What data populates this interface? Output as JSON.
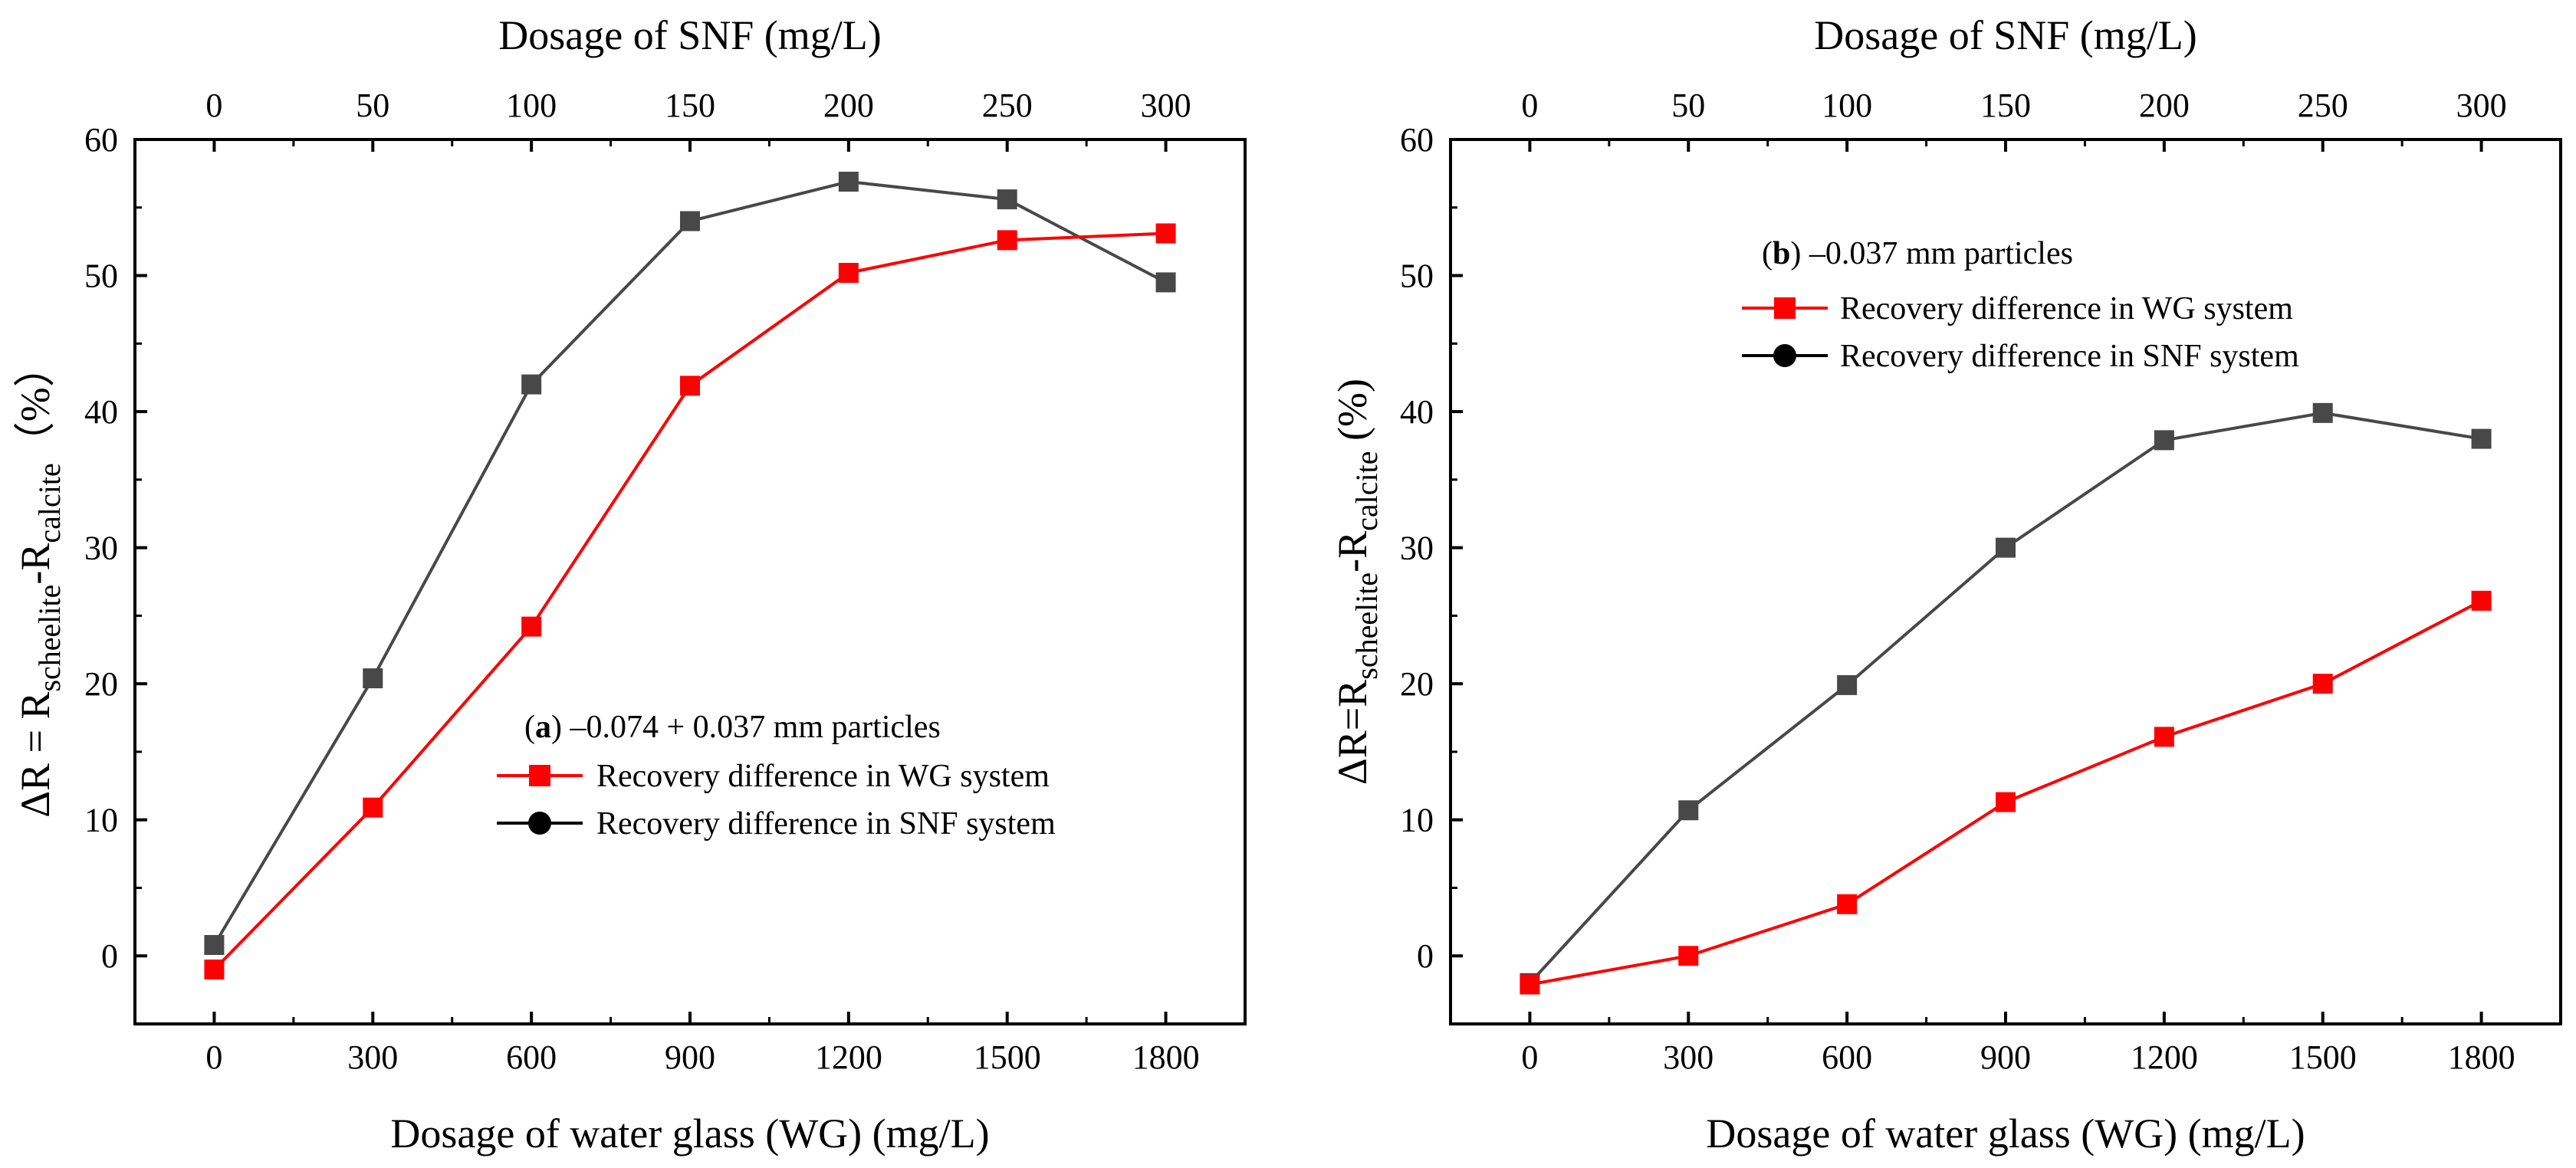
{
  "figure": {
    "colors": {
      "wg_series": "#ff0000",
      "snf_series": "#484848",
      "axis": "#000000"
    }
  },
  "chart_data": [
    {
      "type": "line",
      "id": "a",
      "panel_label": "a",
      "panel_caption": " –0.074 + 0.037 mm particles",
      "xlabel_bottom": "Dosage of water glass (WG) (mg/L)",
      "xlabel_top": "Dosage of SNF (mg/L)",
      "ylabel_parts": [
        "ΔR = R",
        "scheelite",
        "-R",
        "calcite",
        "（%）"
      ],
      "x": [
        0,
        300,
        600,
        900,
        1200,
        1500,
        1800
      ],
      "xticks_bottom": [
        "0",
        "300",
        "600",
        "900",
        "1200",
        "1500",
        "1800"
      ],
      "xticks_top": [
        "0",
        "50",
        "100",
        "150",
        "200",
        "250",
        "300"
      ],
      "xlim": [
        -150,
        1950
      ],
      "ylim": [
        -5,
        60
      ],
      "yticks": [
        "0",
        "10",
        "20",
        "30",
        "40",
        "50",
        "60"
      ],
      "series": [
        {
          "name": "Recovery difference in WG system",
          "values": [
            -1.0,
            10.9,
            24.2,
            41.9,
            50.2,
            52.6,
            53.1
          ]
        },
        {
          "name": "Recovery difference in SNF system",
          "values": [
            0.8,
            20.4,
            42.0,
            54.0,
            56.9,
            55.6,
            49.5
          ]
        }
      ],
      "legend": [
        "Recovery difference in WG system",
        "Recovery difference in SNF system"
      ]
    },
    {
      "type": "line",
      "id": "b",
      "panel_label": "b",
      "panel_caption": " –0.037 mm particles",
      "xlabel_bottom": "Dosage of water glass (WG) (mg/L)",
      "xlabel_top": "Dosage of SNF (mg/L)",
      "ylabel_parts": [
        "ΔR=R",
        "scheelite",
        "-R",
        "calcite",
        " (%)"
      ],
      "x": [
        0,
        300,
        600,
        900,
        1200,
        1500,
        1800
      ],
      "xticks_bottom": [
        "0",
        "300",
        "600",
        "900",
        "1200",
        "1500",
        "1800"
      ],
      "xticks_top": [
        "0",
        "50",
        "100",
        "150",
        "200",
        "250",
        "300"
      ],
      "xlim": [
        -150,
        1950
      ],
      "ylim": [
        -5,
        60
      ],
      "yticks": [
        "0",
        "10",
        "20",
        "30",
        "40",
        "50",
        "60"
      ],
      "series": [
        {
          "name": "Recovery difference in WG system",
          "values": [
            -2.1,
            0.0,
            3.8,
            11.3,
            16.1,
            20.0,
            26.1
          ]
        },
        {
          "name": "Recovery difference in SNF system",
          "values": [
            -2.0,
            10.7,
            19.9,
            30.0,
            37.9,
            39.9,
            38.0
          ]
        }
      ],
      "legend": [
        "Recovery difference in WG system",
        "Recovery difference in SNF system"
      ]
    }
  ]
}
